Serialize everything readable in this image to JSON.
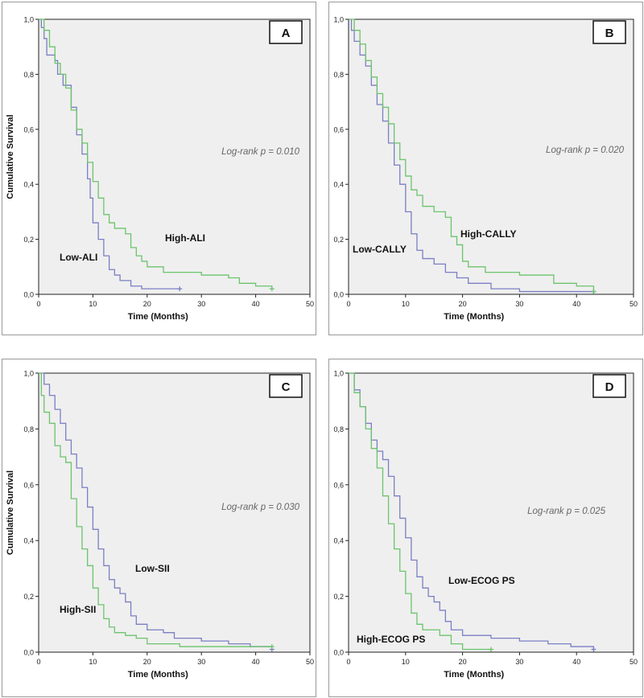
{
  "chart_data": [
    {
      "type": "line",
      "panel_label": "A",
      "xlabel": "Time (Months)",
      "ylabel": "Cumulative Survival",
      "xlim": [
        0,
        50
      ],
      "ylim": [
        0.0,
        1.0
      ],
      "x_ticks": [
        0,
        10,
        20,
        30,
        40,
        50
      ],
      "y_ticks": [
        "0,0",
        "0,2",
        "0,4",
        "0,6",
        "0,8",
        "1,0"
      ],
      "grid": false,
      "step": true,
      "annotation": "Log-rank p = 0.010",
      "series": [
        {
          "name": "Low-ALI",
          "color": "#7b7fc4",
          "points": [
            [
              0,
              1.0
            ],
            [
              0.5,
              0.97
            ],
            [
              1,
              0.93
            ],
            [
              1.5,
              0.87
            ],
            [
              3,
              0.85
            ],
            [
              3.5,
              0.8
            ],
            [
              4.5,
              0.76
            ],
            [
              6,
              0.68
            ],
            [
              7,
              0.58
            ],
            [
              8,
              0.51
            ],
            [
              9,
              0.42
            ],
            [
              9.5,
              0.35
            ],
            [
              10,
              0.26
            ],
            [
              11,
              0.2
            ],
            [
              12,
              0.14
            ],
            [
              13,
              0.09
            ],
            [
              14,
              0.07
            ],
            [
              15,
              0.05
            ],
            [
              17,
              0.03
            ],
            [
              19,
              0.02
            ],
            [
              26,
              0.02
            ]
          ]
        },
        {
          "name": "High-ALI",
          "color": "#6cc46c",
          "points": [
            [
              0,
              1.0
            ],
            [
              1,
              0.96
            ],
            [
              2,
              0.9
            ],
            [
              3,
              0.84
            ],
            [
              4,
              0.8
            ],
            [
              5,
              0.75
            ],
            [
              6,
              0.67
            ],
            [
              7,
              0.6
            ],
            [
              8,
              0.55
            ],
            [
              9,
              0.48
            ],
            [
              10,
              0.41
            ],
            [
              11,
              0.35
            ],
            [
              12,
              0.29
            ],
            [
              13,
              0.26
            ],
            [
              14,
              0.24
            ],
            [
              16,
              0.22
            ],
            [
              17,
              0.17
            ],
            [
              18,
              0.14
            ],
            [
              19,
              0.12
            ],
            [
              20,
              0.1
            ],
            [
              23,
              0.08
            ],
            [
              30,
              0.07
            ],
            [
              35,
              0.06
            ],
            [
              37,
              0.04
            ],
            [
              40,
              0.03
            ],
            [
              43,
              0.02
            ]
          ]
        }
      ]
    },
    {
      "type": "line",
      "panel_label": "B",
      "xlabel": "Time (Months)",
      "ylabel": "",
      "xlim": [
        0,
        50
      ],
      "ylim": [
        0.0,
        1.0
      ],
      "x_ticks": [
        0,
        10,
        20,
        30,
        40,
        50
      ],
      "y_ticks": [
        "0,0",
        "0,2",
        "0,4",
        "0,6",
        "0,8",
        "1,0"
      ],
      "grid": false,
      "step": true,
      "annotation": "Log-rank p = 0.020",
      "series": [
        {
          "name": "Low-CALLY",
          "color": "#7b7fc4",
          "points": [
            [
              0,
              1.0
            ],
            [
              0.5,
              0.96
            ],
            [
              1,
              0.92
            ],
            [
              2,
              0.87
            ],
            [
              3,
              0.83
            ],
            [
              4,
              0.76
            ],
            [
              5,
              0.69
            ],
            [
              6,
              0.63
            ],
            [
              7,
              0.55
            ],
            [
              8,
              0.47
            ],
            [
              9,
              0.4
            ],
            [
              10,
              0.3
            ],
            [
              11,
              0.22
            ],
            [
              12,
              0.16
            ],
            [
              13,
              0.13
            ],
            [
              15,
              0.11
            ],
            [
              17,
              0.08
            ],
            [
              19,
              0.06
            ],
            [
              21,
              0.04
            ],
            [
              25,
              0.02
            ],
            [
              30,
              0.01
            ],
            [
              43,
              0.01
            ]
          ]
        },
        {
          "name": "High-CALLY",
          "color": "#6cc46c",
          "points": [
            [
              0,
              1.0
            ],
            [
              1,
              0.96
            ],
            [
              2,
              0.91
            ],
            [
              3,
              0.85
            ],
            [
              4,
              0.79
            ],
            [
              5,
              0.73
            ],
            [
              6,
              0.68
            ],
            [
              7,
              0.62
            ],
            [
              8,
              0.55
            ],
            [
              9,
              0.49
            ],
            [
              10,
              0.43
            ],
            [
              11,
              0.38
            ],
            [
              12,
              0.36
            ],
            [
              13,
              0.32
            ],
            [
              15,
              0.3
            ],
            [
              17,
              0.28
            ],
            [
              18,
              0.21
            ],
            [
              19,
              0.18
            ],
            [
              20,
              0.12
            ],
            [
              21,
              0.1
            ],
            [
              24,
              0.08
            ],
            [
              30,
              0.07
            ],
            [
              36,
              0.04
            ],
            [
              40,
              0.03
            ],
            [
              43,
              0.01
            ]
          ]
        }
      ]
    },
    {
      "type": "line",
      "panel_label": "C",
      "xlabel": "Time (Months)",
      "ylabel": "Cumulative Survival",
      "xlim": [
        0,
        50
      ],
      "ylim": [
        0.0,
        1.0
      ],
      "x_ticks": [
        0,
        10,
        20,
        30,
        40,
        50
      ],
      "y_ticks": [
        "0,0",
        "0,2",
        "0,4",
        "0,6",
        "0,8",
        "1,0"
      ],
      "grid": false,
      "step": true,
      "annotation": "Log-rank p = 0.030",
      "series": [
        {
          "name": "Low-SII",
          "color": "#7b7fc4",
          "points": [
            [
              0,
              1.0
            ],
            [
              1,
              0.96
            ],
            [
              2,
              0.92
            ],
            [
              3,
              0.87
            ],
            [
              4,
              0.82
            ],
            [
              5,
              0.76
            ],
            [
              6,
              0.71
            ],
            [
              7,
              0.66
            ],
            [
              8,
              0.59
            ],
            [
              9,
              0.52
            ],
            [
              10,
              0.44
            ],
            [
              11,
              0.37
            ],
            [
              12,
              0.31
            ],
            [
              13,
              0.26
            ],
            [
              14,
              0.23
            ],
            [
              15,
              0.21
            ],
            [
              16,
              0.18
            ],
            [
              17,
              0.13
            ],
            [
              18,
              0.1
            ],
            [
              20,
              0.08
            ],
            [
              23,
              0.07
            ],
            [
              25,
              0.05
            ],
            [
              30,
              0.04
            ],
            [
              35,
              0.03
            ],
            [
              39,
              0.02
            ],
            [
              43,
              0.01
            ]
          ]
        },
        {
          "name": "High-SII",
          "color": "#6cc46c",
          "points": [
            [
              0,
              1.0
            ],
            [
              0.5,
              0.92
            ],
            [
              1,
              0.86
            ],
            [
              2,
              0.82
            ],
            [
              3,
              0.74
            ],
            [
              4,
              0.7
            ],
            [
              5,
              0.68
            ],
            [
              6,
              0.55
            ],
            [
              7,
              0.45
            ],
            [
              8,
              0.37
            ],
            [
              9,
              0.31
            ],
            [
              10,
              0.23
            ],
            [
              11,
              0.17
            ],
            [
              12,
              0.12
            ],
            [
              13,
              0.09
            ],
            [
              14,
              0.07
            ],
            [
              16,
              0.06
            ],
            [
              18,
              0.05
            ],
            [
              20,
              0.03
            ],
            [
              26,
              0.02
            ],
            [
              43,
              0.02
            ]
          ]
        }
      ]
    },
    {
      "type": "line",
      "panel_label": "D",
      "xlabel": "Time (Months)",
      "ylabel": "",
      "xlim": [
        0,
        50
      ],
      "ylim": [
        0.0,
        1.0
      ],
      "x_ticks": [
        0,
        10,
        20,
        30,
        40,
        50
      ],
      "y_ticks": [
        "0,0",
        "0,2",
        "0,4",
        "0,6",
        "0,8",
        "1,0"
      ],
      "grid": false,
      "step": true,
      "annotation": "Log-rank p = 0.025",
      "series": [
        {
          "name": "Low-ECOG PS",
          "color": "#7b7fc4",
          "points": [
            [
              0,
              1.0
            ],
            [
              1,
              0.94
            ],
            [
              2,
              0.88
            ],
            [
              3,
              0.82
            ],
            [
              4,
              0.76
            ],
            [
              5,
              0.72
            ],
            [
              6,
              0.69
            ],
            [
              7,
              0.63
            ],
            [
              8,
              0.56
            ],
            [
              9,
              0.48
            ],
            [
              10,
              0.41
            ],
            [
              11,
              0.33
            ],
            [
              12,
              0.27
            ],
            [
              13,
              0.23
            ],
            [
              14,
              0.2
            ],
            [
              15,
              0.18
            ],
            [
              16,
              0.15
            ],
            [
              17,
              0.11
            ],
            [
              18,
              0.08
            ],
            [
              20,
              0.06
            ],
            [
              25,
              0.05
            ],
            [
              30,
              0.04
            ],
            [
              35,
              0.03
            ],
            [
              39,
              0.02
            ],
            [
              43,
              0.01
            ]
          ]
        },
        {
          "name": "High-ECOG PS",
          "color": "#6cc46c",
          "points": [
            [
              0,
              1.0
            ],
            [
              1,
              0.93
            ],
            [
              2,
              0.88
            ],
            [
              3,
              0.8
            ],
            [
              4,
              0.73
            ],
            [
              5,
              0.66
            ],
            [
              6,
              0.56
            ],
            [
              7,
              0.46
            ],
            [
              8,
              0.37
            ],
            [
              9,
              0.29
            ],
            [
              10,
              0.21
            ],
            [
              11,
              0.14
            ],
            [
              12,
              0.1
            ],
            [
              13,
              0.08
            ],
            [
              16,
              0.06
            ],
            [
              18,
              0.03
            ],
            [
              20,
              0.01
            ],
            [
              25,
              0.01
            ]
          ]
        }
      ]
    }
  ]
}
